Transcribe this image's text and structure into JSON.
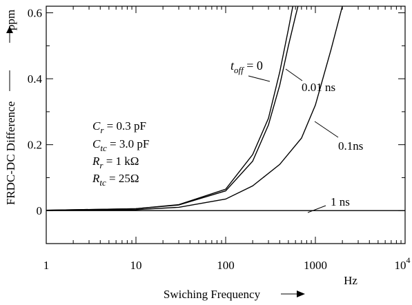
{
  "chart_data": {
    "type": "line",
    "xscale": "log",
    "xlim": [
      1,
      10000
    ],
    "ylim": [
      -0.1,
      0.62
    ],
    "x_ticks": [
      {
        "value": 1,
        "label": "1"
      },
      {
        "value": 10,
        "label": "10"
      },
      {
        "value": 100,
        "label": "100"
      },
      {
        "value": 1000,
        "label": "1000"
      }
    ],
    "x_end_label": {
      "base": "10",
      "exp": "4"
    },
    "y_ticks": [
      {
        "value": 0,
        "label": "0"
      },
      {
        "value": 0.2,
        "label": "0.2"
      },
      {
        "value": 0.4,
        "label": "0.4"
      },
      {
        "value": 0.6,
        "label": "0.6"
      }
    ],
    "ylabel": "FRDC-DC Difference",
    "y_unit": "ppm",
    "xlabel": "Swiching Frequency",
    "x_unit": "Hz",
    "annotation_toff": {
      "base": "t",
      "sub": "off",
      "rest": " = 0"
    },
    "parameters": [
      {
        "sym": "C",
        "sub": "r",
        "val": " = 0.3 pF"
      },
      {
        "sym": "C",
        "sub": "tc",
        "val": " = 3.0 pF"
      },
      {
        "sym": "R",
        "sub": "r",
        "val": " = 1 kΩ"
      },
      {
        "sym": "R",
        "sub": "tc",
        "val": " = 25Ω"
      }
    ],
    "series": [
      {
        "label": "",
        "x": [
          1,
          10,
          30,
          100,
          200,
          300,
          400,
          500,
          560
        ],
        "y": [
          0.001,
          0.006,
          0.018,
          0.065,
          0.17,
          0.28,
          0.42,
          0.55,
          0.62
        ]
      },
      {
        "label": "0.01 ns",
        "x": [
          1,
          10,
          30,
          100,
          200,
          300,
          400,
          500,
          600,
          640
        ],
        "y": [
          0.001,
          0.006,
          0.017,
          0.06,
          0.15,
          0.26,
          0.38,
          0.5,
          0.59,
          0.62
        ]
      },
      {
        "label": "0.1ns",
        "x": [
          1,
          10,
          30,
          100,
          200,
          400,
          700,
          1000,
          1500,
          2000
        ],
        "y": [
          0.001,
          0.003,
          0.01,
          0.035,
          0.075,
          0.14,
          0.22,
          0.32,
          0.49,
          0.62
        ]
      },
      {
        "label": "1 ns",
        "x": [
          1,
          10000
        ],
        "y": [
          0.0,
          0.0
        ]
      }
    ],
    "grid": false
  }
}
